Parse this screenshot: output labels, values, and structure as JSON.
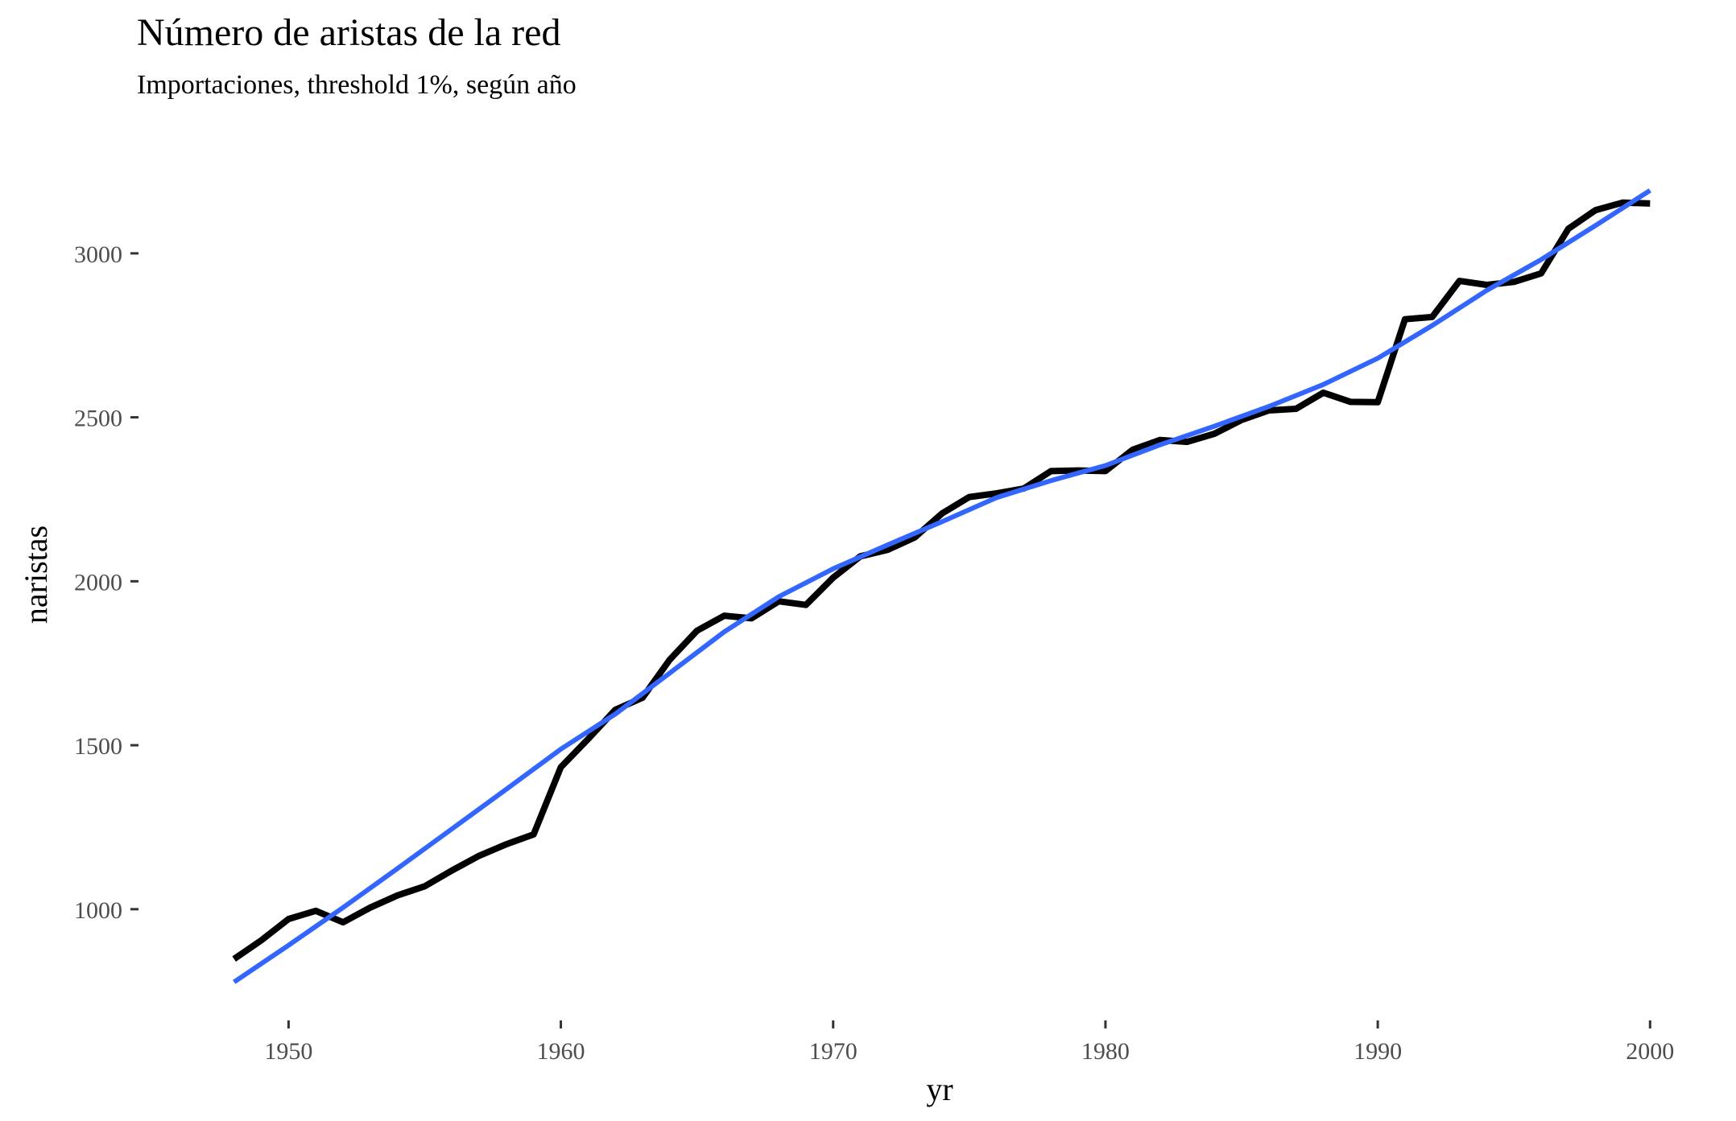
{
  "chart_data": {
    "type": "line",
    "title": "Número de aristas de la red",
    "subtitle": "Importaciones, threshold 1%, según año",
    "xlabel": "yr",
    "ylabel": "naristas",
    "xlim": [
      1946.5,
      2001.5
    ],
    "ylim": [
      705,
      3380
    ],
    "x_ticks": [
      1950,
      1960,
      1970,
      1980,
      1990,
      2000
    ],
    "x_tick_labels": [
      "1950",
      "1960",
      "1970",
      "1980",
      "1990",
      "2000"
    ],
    "y_ticks": [
      1000,
      1500,
      2000,
      2500,
      3000
    ],
    "y_tick_labels": [
      "1000",
      "1500",
      "2000",
      "2500",
      "3000"
    ],
    "grid": false,
    "series": [
      {
        "color": "#000000",
        "x": [
          1948,
          1949,
          1950,
          1951,
          1952,
          1953,
          1954,
          1955,
          1956,
          1957,
          1958,
          1959,
          1960,
          1961,
          1962,
          1963,
          1964,
          1965,
          1966,
          1967,
          1968,
          1969,
          1970,
          1971,
          1972,
          1973,
          1974,
          1975,
          1976,
          1977,
          1978,
          1979,
          1980,
          1981,
          1982,
          1983,
          1984,
          1985,
          1986,
          1987,
          1988,
          1989,
          1990,
          1991,
          1992,
          1993,
          1994,
          1995,
          1996,
          1997,
          1998,
          1999,
          2000
        ],
        "values": [
          848,
          905,
          970,
          995,
          960,
          1005,
          1042,
          1070,
          1118,
          1163,
          1198,
          1228,
          1433,
          1519,
          1608,
          1645,
          1761,
          1849,
          1895,
          1887,
          1939,
          1928,
          2011,
          2076,
          2096,
          2134,
          2207,
          2257,
          2268,
          2283,
          2336,
          2338,
          2336,
          2401,
          2431,
          2425,
          2450,
          2492,
          2521,
          2526,
          2575,
          2547,
          2546,
          2799,
          2806,
          2916,
          2904,
          2913,
          2939,
          3075,
          3132,
          3155,
          3152
        ]
      },
      {
        "color": "#3366FF",
        "x": [
          1948,
          1950,
          1952,
          1954,
          1956,
          1958,
          1960,
          1962,
          1964,
          1966,
          1968,
          1970,
          1972,
          1974,
          1976,
          1978,
          1980,
          1982,
          1984,
          1986,
          1988,
          1990,
          1992,
          1994,
          1996,
          1998,
          2000
        ],
        "values": [
          778,
          890,
          1005,
          1124,
          1245,
          1366,
          1488,
          1595,
          1720,
          1846,
          1953,
          2038,
          2111,
          2182,
          2255,
          2307,
          2353,
          2416,
          2473,
          2533,
          2600,
          2680,
          2780,
          2887,
          2981,
          3085,
          3192
        ]
      }
    ]
  }
}
